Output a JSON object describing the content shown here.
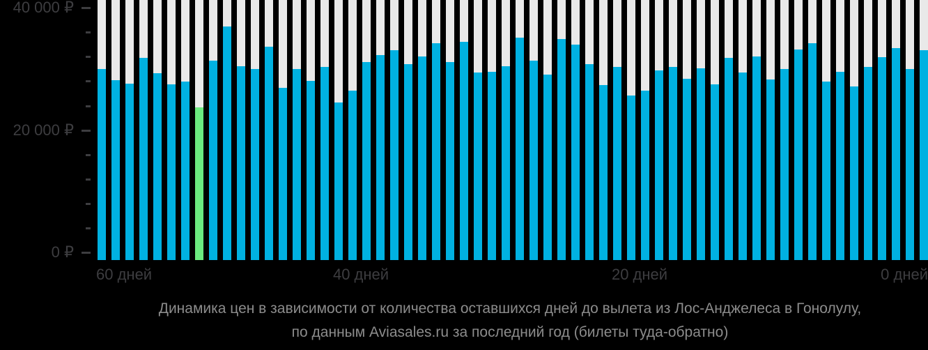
{
  "chart_data": {
    "type": "bar",
    "title": "Динамика цен в зависимости от количества оставшихся дней до вылета из Лос-Анджелеса в Гонолулу,",
    "subtitle": "по данным Aviasales.ru за последний год (билеты туда-обратно)",
    "currency": "₽",
    "x_axis": {
      "tick_labels": [
        "60 дней",
        "40 дней",
        "20 дней",
        "0 дней"
      ],
      "direction": "days remaining before departure, decreasing left to right"
    },
    "y_axis": {
      "tick_labels": [
        "40 000 ₽",
        "20 000 ₽",
        "0 ₽"
      ],
      "range": [
        0,
        40000
      ],
      "minor_tick_step": 4000
    },
    "values_rub": [
      30100,
      28200,
      27700,
      31900,
      29400,
      27500,
      28000,
      23800,
      31400,
      37000,
      30500,
      30000,
      33700,
      27000,
      30100,
      28100,
      30400,
      24600,
      26500,
      31200,
      32300,
      33100,
      30800,
      32100,
      34300,
      31200,
      34500,
      29500,
      29600,
      30500,
      35200,
      31400,
      29100,
      35000,
      34100,
      30800,
      27400,
      30400,
      25700,
      26500,
      29800,
      30400,
      28400,
      30200,
      27500,
      31900,
      29500,
      32100,
      28300,
      30100,
      33300,
      34300,
      28000,
      29600,
      27200,
      30400,
      32000,
      33500,
      30100,
      33100
    ],
    "highlighted_bar": {
      "index": 7,
      "value_rub": 23800,
      "meaning": "lowest price"
    },
    "colors": {
      "bar": "#00b1e1",
      "highlight": "#6ce97f",
      "track": "#e9e9e9",
      "background": "#000000",
      "axis_text": "#3d3d40",
      "caption_text": "#8c8c8c"
    },
    "grid": "off",
    "legend": "none"
  }
}
